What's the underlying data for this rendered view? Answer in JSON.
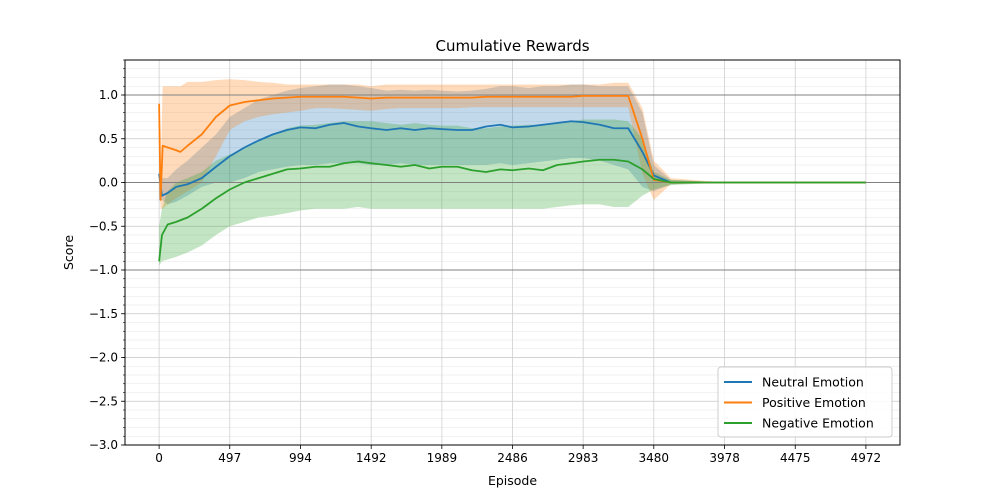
{
  "chart_data": {
    "type": "line",
    "title": "Cumulative Rewards",
    "xlabel": "Episode",
    "ylabel": "Score",
    "xlim": [
      -240,
      5212
    ],
    "ylim": [
      -3.0,
      1.4
    ],
    "x_ticks": [
      0,
      497,
      994,
      1492,
      1989,
      2486,
      2983,
      3480,
      3978,
      4475,
      4972
    ],
    "y_ticks": [
      -3.0,
      -2.5,
      -2.0,
      -1.5,
      -1.0,
      -0.5,
      0.0,
      0.5,
      1.0
    ],
    "y_tick_labels": [
      "−3.0",
      "−2.5",
      "−2.0",
      "−1.5",
      "−1.0",
      "−0.5",
      "0.0",
      "0.5",
      "1.0"
    ],
    "reference_lines": [
      -1.0,
      0.0,
      1.0
    ],
    "grid": true,
    "legend_position": "bottom-right",
    "series": [
      {
        "name": "Neutral Emotion",
        "color": "#1f77b4",
        "x": [
          0,
          20,
          60,
          120,
          200,
          300,
          400,
          497,
          600,
          700,
          800,
          900,
          994,
          1100,
          1200,
          1300,
          1400,
          1492,
          1600,
          1700,
          1800,
          1900,
          1989,
          2100,
          2200,
          2300,
          2400,
          2486,
          2600,
          2700,
          2800,
          2900,
          2983,
          3100,
          3200,
          3300,
          3400,
          3480,
          3600,
          3978,
          4475,
          4972
        ],
        "y": [
          0.1,
          -0.15,
          -0.12,
          -0.05,
          -0.02,
          0.05,
          0.18,
          0.3,
          0.4,
          0.48,
          0.55,
          0.6,
          0.63,
          0.62,
          0.66,
          0.68,
          0.64,
          0.62,
          0.6,
          0.62,
          0.6,
          0.62,
          0.61,
          0.6,
          0.6,
          0.64,
          0.66,
          0.63,
          0.64,
          0.66,
          0.68,
          0.7,
          0.69,
          0.66,
          0.62,
          0.62,
          0.35,
          0.08,
          0.0,
          0.0,
          0.0,
          0.0
        ],
        "lower": [
          -0.2,
          -0.2,
          -0.25,
          -0.22,
          -0.15,
          -0.05,
          0.0,
          0.0,
          0.05,
          0.12,
          0.15,
          0.18,
          0.2,
          0.2,
          0.22,
          0.22,
          0.22,
          0.2,
          0.2,
          0.22,
          0.2,
          0.2,
          0.2,
          0.2,
          0.2,
          0.2,
          0.22,
          0.2,
          0.22,
          0.24,
          0.26,
          0.28,
          0.28,
          0.25,
          0.2,
          0.15,
          -0.05,
          -0.1,
          -0.02,
          0.0,
          0.0,
          0.0
        ],
        "upper": [
          0.3,
          0.05,
          0.05,
          0.15,
          0.25,
          0.4,
          0.55,
          0.75,
          0.85,
          0.95,
          1.0,
          1.05,
          1.08,
          1.1,
          1.12,
          1.12,
          1.1,
          1.08,
          1.05,
          1.06,
          1.05,
          1.06,
          1.05,
          1.04,
          1.05,
          1.07,
          1.1,
          1.1,
          1.08,
          1.1,
          1.1,
          1.12,
          1.12,
          1.1,
          1.1,
          1.1,
          0.8,
          0.2,
          0.03,
          0.0,
          0.0,
          0.0
        ]
      },
      {
        "name": "Positive Emotion",
        "color": "#ff7f0e",
        "x": [
          0,
          10,
          25,
          60,
          100,
          150,
          200,
          300,
          400,
          497,
          600,
          700,
          800,
          900,
          994,
          1100,
          1200,
          1300,
          1400,
          1492,
          1600,
          1700,
          1800,
          1900,
          1989,
          2100,
          2200,
          2300,
          2400,
          2486,
          2600,
          2700,
          2800,
          2900,
          2983,
          3100,
          3200,
          3300,
          3400,
          3480,
          3600,
          3978,
          4475,
          4972
        ],
        "y": [
          0.9,
          -0.2,
          0.42,
          0.4,
          0.38,
          0.35,
          0.42,
          0.55,
          0.75,
          0.88,
          0.92,
          0.94,
          0.96,
          0.97,
          0.98,
          0.98,
          0.98,
          0.98,
          0.97,
          0.96,
          0.97,
          0.97,
          0.97,
          0.97,
          0.97,
          0.97,
          0.97,
          0.98,
          0.98,
          0.98,
          0.98,
          0.98,
          0.98,
          0.98,
          0.99,
          0.99,
          0.99,
          0.99,
          0.5,
          0.03,
          0.0,
          0.0,
          0.0,
          0.0
        ],
        "lower": [
          0.5,
          -0.3,
          -0.3,
          -0.25,
          -0.2,
          -0.15,
          -0.1,
          0.0,
          0.3,
          0.6,
          0.7,
          0.75,
          0.78,
          0.8,
          0.82,
          0.85,
          0.85,
          0.84,
          0.83,
          0.82,
          0.84,
          0.85,
          0.85,
          0.85,
          0.85,
          0.85,
          0.86,
          0.86,
          0.86,
          0.86,
          0.86,
          0.86,
          0.86,
          0.86,
          0.86,
          0.86,
          0.86,
          0.86,
          0.1,
          -0.2,
          -0.02,
          0.0,
          0.0,
          0.0
        ],
        "upper": [
          1.1,
          0.1,
          1.1,
          1.1,
          1.1,
          1.1,
          1.15,
          1.15,
          1.17,
          1.18,
          1.17,
          1.15,
          1.14,
          1.12,
          1.12,
          1.12,
          1.12,
          1.12,
          1.12,
          1.1,
          1.12,
          1.12,
          1.12,
          1.12,
          1.12,
          1.12,
          1.12,
          1.12,
          1.12,
          1.12,
          1.12,
          1.12,
          1.12,
          1.12,
          1.12,
          1.12,
          1.14,
          1.14,
          0.85,
          0.25,
          0.05,
          0.0,
          0.0,
          0.0
        ]
      },
      {
        "name": "Negative Emotion",
        "color": "#2ca02c",
        "x": [
          0,
          20,
          60,
          120,
          200,
          300,
          400,
          497,
          600,
          700,
          800,
          900,
          994,
          1100,
          1200,
          1300,
          1400,
          1492,
          1600,
          1700,
          1800,
          1900,
          1989,
          2100,
          2200,
          2300,
          2400,
          2486,
          2600,
          2700,
          2800,
          2900,
          2983,
          3100,
          3200,
          3300,
          3400,
          3480,
          3600,
          3978,
          4475,
          4972
        ],
        "y": [
          -0.9,
          -0.6,
          -0.48,
          -0.45,
          -0.4,
          -0.3,
          -0.18,
          -0.08,
          0.0,
          0.05,
          0.1,
          0.15,
          0.16,
          0.18,
          0.18,
          0.22,
          0.24,
          0.22,
          0.2,
          0.18,
          0.2,
          0.16,
          0.18,
          0.18,
          0.14,
          0.12,
          0.15,
          0.14,
          0.16,
          0.14,
          0.2,
          0.22,
          0.24,
          0.26,
          0.26,
          0.24,
          0.15,
          0.04,
          0.0,
          0.0,
          0.0,
          0.0
        ],
        "lower": [
          -0.95,
          -0.9,
          -0.88,
          -0.85,
          -0.8,
          -0.72,
          -0.6,
          -0.5,
          -0.45,
          -0.4,
          -0.38,
          -0.35,
          -0.32,
          -0.3,
          -0.3,
          -0.3,
          -0.28,
          -0.3,
          -0.3,
          -0.3,
          -0.3,
          -0.3,
          -0.3,
          -0.3,
          -0.3,
          -0.3,
          -0.3,
          -0.3,
          -0.3,
          -0.3,
          -0.28,
          -0.26,
          -0.25,
          -0.25,
          -0.28,
          -0.28,
          -0.15,
          -0.08,
          -0.03,
          0.0,
          0.0,
          0.0
        ],
        "upper": [
          -0.5,
          -0.3,
          -0.1,
          0.0,
          0.05,
          0.12,
          0.25,
          0.32,
          0.4,
          0.48,
          0.55,
          0.62,
          0.65,
          0.66,
          0.68,
          0.7,
          0.7,
          0.7,
          0.68,
          0.66,
          0.68,
          0.66,
          0.65,
          0.65,
          0.62,
          0.62,
          0.64,
          0.65,
          0.66,
          0.66,
          0.68,
          0.7,
          0.72,
          0.72,
          0.72,
          0.7,
          0.5,
          0.12,
          0.03,
          0.0,
          0.0,
          0.0
        ]
      }
    ]
  }
}
